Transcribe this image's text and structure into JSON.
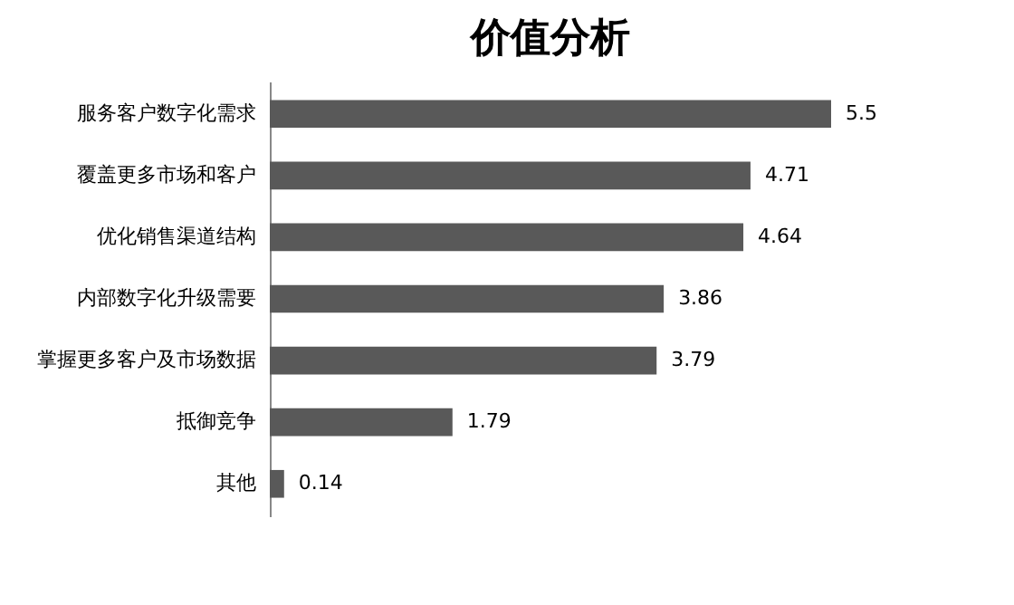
{
  "chart_data": {
    "type": "bar",
    "orientation": "horizontal",
    "title": "价值分析",
    "categories": [
      "服务客户数字化需求",
      "覆盖更多市场和客户",
      "优化销售渠道结构",
      "内部数字化升级需要",
      "掌握更多客户及市场数据",
      "抵御竞争",
      "其他"
    ],
    "values": [
      5.5,
      4.71,
      4.64,
      3.86,
      3.79,
      1.79,
      0.14
    ],
    "color": "#595959",
    "data_labels": true
  }
}
